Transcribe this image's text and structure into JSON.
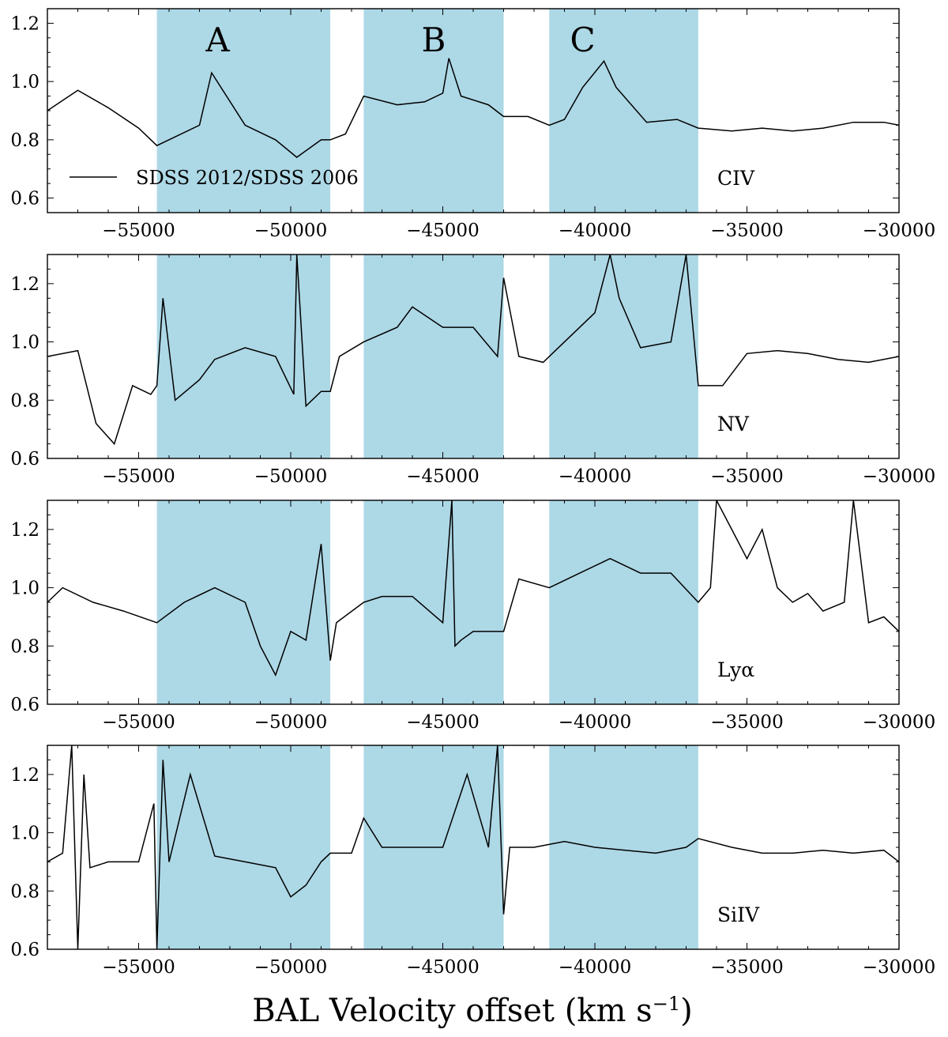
{
  "chart_data": {
    "type": "line",
    "xlabel": "BAL Velocity offset (km s",
    "xlabel_sup": "−1",
    "xlabel_close": ")",
    "xlim": [
      -58000,
      -30000
    ],
    "xticks": [
      -55000,
      -50000,
      -45000,
      -40000,
      -35000,
      -30000
    ],
    "xtick_labels": [
      "−55000",
      "−50000",
      "−45000",
      "−40000",
      "−35000",
      "−30000"
    ],
    "shade_color": "#add8e6",
    "line_color": "#000000",
    "shaded_regions": [
      {
        "x0": -54400,
        "x1": -48700,
        "label": "A",
        "label_x": -52400
      },
      {
        "x0": -47600,
        "x1": -43000,
        "label": "B",
        "label_x": -45300
      },
      {
        "x0": -41500,
        "x1": -36600,
        "label": "C",
        "label_x": -40400
      }
    ],
    "legend": {
      "label": "SDSS 2012/SDSS 2006",
      "loc": "lower left",
      "panel": 0
    },
    "panels": [
      {
        "line": "CIV",
        "ylim": [
          0.55,
          1.25
        ],
        "yticks": [
          0.6,
          0.8,
          1.0,
          1.2
        ],
        "ytick_labels": [
          "0.6",
          "0.8",
          "1.0",
          "1.2"
        ],
        "series": [
          {
            "x": [
              -58000,
              -57000,
              -56000,
              -55000,
              -54400,
              -53000,
              -52600,
              -51500,
              -50500,
              -49800,
              -49000,
              -48700,
              -48200,
              -47600,
              -46500,
              -45600,
              -45000,
              -44800,
              -44400,
              -43500,
              -43000,
              -42200,
              -41500,
              -41000,
              -40400,
              -39700,
              -39300,
              -38300,
              -37300,
              -36600,
              -35500,
              -34500,
              -33500,
              -32500,
              -31500,
              -30500,
              -30000
            ],
            "y": [
              0.9,
              0.97,
              0.91,
              0.84,
              0.78,
              0.85,
              1.03,
              0.85,
              0.8,
              0.74,
              0.8,
              0.8,
              0.82,
              0.95,
              0.92,
              0.93,
              0.96,
              1.08,
              0.95,
              0.92,
              0.88,
              0.88,
              0.85,
              0.87,
              0.98,
              1.07,
              0.98,
              0.86,
              0.87,
              0.84,
              0.83,
              0.84,
              0.83,
              0.84,
              0.86,
              0.86,
              0.85
            ]
          }
        ]
      },
      {
        "line": "NV",
        "ylim": [
          0.6,
          1.3
        ],
        "yticks": [
          0.6,
          0.8,
          1.0,
          1.2
        ],
        "ytick_labels": [
          "0.6",
          "0.8",
          "1.0",
          "1.2"
        ],
        "series": [
          {
            "x": [
              -58000,
              -57000,
              -56400,
              -55800,
              -55200,
              -54600,
              -54400,
              -54200,
              -53800,
              -53000,
              -52500,
              -51500,
              -50500,
              -49900,
              -49800,
              -49500,
              -49000,
              -48700,
              -48400,
              -47600,
              -46500,
              -46000,
              -45000,
              -44000,
              -43200,
              -43000,
              -42500,
              -41700,
              -41300,
              -41000,
              -40000,
              -39500,
              -39200,
              -38500,
              -37500,
              -37000,
              -36600,
              -35800,
              -35000,
              -34000,
              -33000,
              -32000,
              -31000,
              -30000
            ],
            "y": [
              0.95,
              0.97,
              0.72,
              0.65,
              0.85,
              0.82,
              0.85,
              1.15,
              0.8,
              0.87,
              0.94,
              0.98,
              0.95,
              0.82,
              1.3,
              0.78,
              0.83,
              0.83,
              0.95,
              1.0,
              1.05,
              1.12,
              1.05,
              1.05,
              0.95,
              1.22,
              0.95,
              0.93,
              0.97,
              1.0,
              1.1,
              1.3,
              1.15,
              0.98,
              1.0,
              1.3,
              0.85,
              0.85,
              0.96,
              0.97,
              0.96,
              0.94,
              0.93,
              0.95
            ]
          }
        ]
      },
      {
        "line": "Lyα",
        "ylim": [
          0.6,
          1.3
        ],
        "yticks": [
          0.6,
          0.8,
          1.0,
          1.2
        ],
        "ytick_labels": [
          "0.6",
          "0.8",
          "1.0",
          "1.2"
        ],
        "series": [
          {
            "x": [
              -58000,
              -57500,
              -56500,
              -55500,
              -54400,
              -53500,
              -52500,
              -51500,
              -51000,
              -50500,
              -50000,
              -49500,
              -49000,
              -48700,
              -48500,
              -47600,
              -47000,
              -46000,
              -45000,
              -44700,
              -44600,
              -44400,
              -44000,
              -43000,
              -42500,
              -41500,
              -40500,
              -39500,
              -38500,
              -37500,
              -36600,
              -36200,
              -36000,
              -35500,
              -35000,
              -34500,
              -34000,
              -33500,
              -33000,
              -32500,
              -31800,
              -31500,
              -31000,
              -30500,
              -30000
            ],
            "y": [
              0.95,
              1.0,
              0.95,
              0.92,
              0.88,
              0.95,
              1.0,
              0.95,
              0.8,
              0.7,
              0.85,
              0.82,
              1.15,
              0.75,
              0.88,
              0.95,
              0.97,
              0.97,
              0.88,
              1.3,
              0.8,
              0.82,
              0.85,
              0.85,
              1.03,
              1.0,
              1.05,
              1.1,
              1.05,
              1.05,
              0.95,
              1.0,
              1.3,
              1.2,
              1.1,
              1.2,
              1.0,
              0.95,
              0.98,
              0.92,
              0.95,
              1.3,
              0.88,
              0.9,
              0.85
            ]
          }
        ]
      },
      {
        "line": "SiIV",
        "ylim": [
          0.6,
          1.3
        ],
        "yticks": [
          0.6,
          0.8,
          1.0,
          1.2
        ],
        "ytick_labels": [
          "0.6",
          "0.8",
          "1.0",
          "1.2"
        ],
        "series": [
          {
            "x": [
              -58000,
              -57500,
              -57200,
              -57000,
              -56800,
              -56600,
              -56000,
              -55000,
              -54500,
              -54400,
              -54200,
              -54000,
              -53300,
              -52500,
              -51500,
              -50500,
              -50000,
              -49500,
              -49000,
              -48700,
              -48000,
              -47600,
              -47000,
              -46000,
              -45000,
              -44200,
              -43500,
              -43200,
              -43000,
              -42800,
              -42000,
              -41000,
              -40000,
              -39000,
              -38000,
              -37000,
              -36600,
              -35500,
              -34500,
              -33500,
              -32500,
              -31500,
              -30500,
              -30000
            ],
            "y": [
              0.9,
              0.93,
              1.3,
              0.6,
              1.2,
              0.88,
              0.9,
              0.9,
              1.1,
              0.6,
              1.25,
              0.9,
              1.2,
              0.92,
              0.9,
              0.88,
              0.78,
              0.82,
              0.9,
              0.93,
              0.93,
              1.05,
              0.95,
              0.95,
              0.95,
              1.2,
              0.95,
              1.3,
              0.72,
              0.95,
              0.95,
              0.97,
              0.95,
              0.94,
              0.93,
              0.95,
              0.98,
              0.95,
              0.93,
              0.93,
              0.94,
              0.93,
              0.94,
              0.9
            ]
          }
        ]
      }
    ]
  }
}
